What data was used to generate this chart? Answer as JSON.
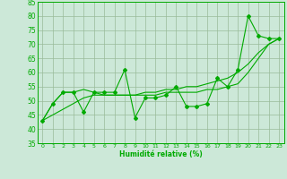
{
  "x": [
    0,
    1,
    2,
    3,
    4,
    5,
    6,
    7,
    8,
    9,
    10,
    11,
    12,
    13,
    14,
    15,
    16,
    17,
    18,
    19,
    20,
    21,
    22,
    23
  ],
  "y_main": [
    43,
    49,
    53,
    53,
    46,
    53,
    53,
    53,
    61,
    44,
    51,
    51,
    52,
    55,
    48,
    48,
    49,
    58,
    55,
    61,
    80,
    73,
    72,
    72
  ],
  "y_trend1": [
    43,
    49,
    53,
    53,
    54,
    53,
    52,
    52,
    52,
    52,
    52,
    52,
    53,
    53,
    53,
    53,
    54,
    54,
    55,
    56,
    60,
    65,
    70,
    72
  ],
  "y_trend2": [
    43,
    45,
    47,
    49,
    51,
    52,
    52,
    52,
    52,
    52,
    53,
    53,
    54,
    54,
    55,
    55,
    56,
    57,
    58,
    60,
    63,
    67,
    70,
    72
  ],
  "line_color": "#00aa00",
  "bg_color": "#cce8d8",
  "grid_color": "#99bb99",
  "xlabel": "Humidité relative (%)",
  "ylim": [
    35,
    85
  ],
  "xlim": [
    -0.5,
    23.5
  ],
  "yticks": [
    35,
    40,
    45,
    50,
    55,
    60,
    65,
    70,
    75,
    80,
    85
  ],
  "xticks": [
    0,
    1,
    2,
    3,
    4,
    5,
    6,
    7,
    8,
    9,
    10,
    11,
    12,
    13,
    14,
    15,
    16,
    17,
    18,
    19,
    20,
    21,
    22,
    23
  ]
}
